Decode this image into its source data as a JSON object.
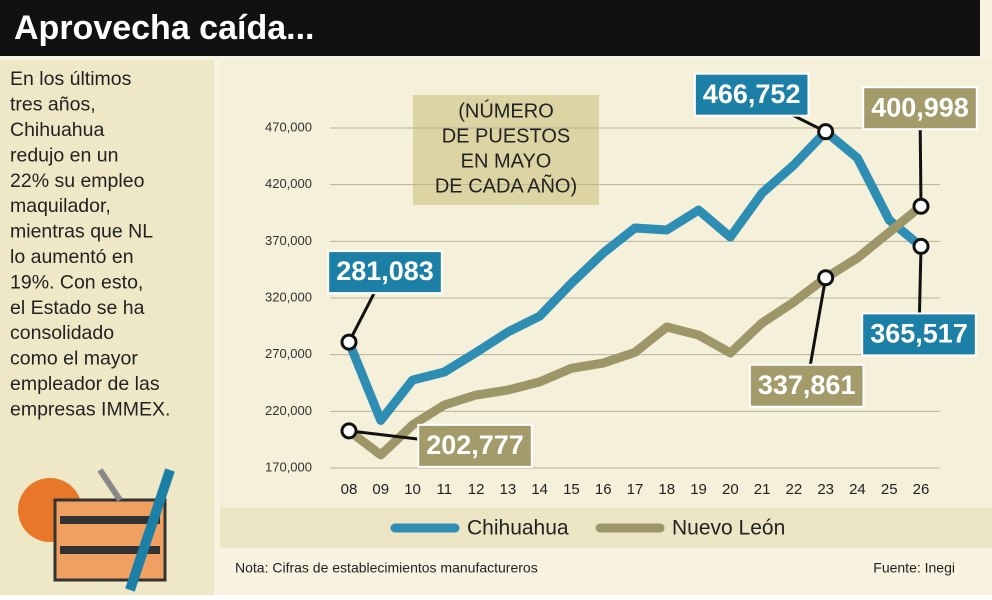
{
  "title": "Aprovecha caída...",
  "intro_lines": [
    "En los últimos",
    "tres años,",
    "Chihuahua",
    "redujo en un",
    "22% su empleo",
    "maquilador,",
    "mientras que NL",
    "lo aumentó en",
    "19%. Con esto,",
    "el Estado se ha",
    "consolidado",
    "como el mayor",
    "empleador de las",
    "empresas IMMEX."
  ],
  "chart_data": {
    "type": "line",
    "subtitle_lines": [
      "(NÚMERO",
      "DE PUESTOS",
      "EN MAYO",
      "DE CADA AÑO)"
    ],
    "categories": [
      "08",
      "09",
      "10",
      "11",
      "12",
      "13",
      "14",
      "15",
      "16",
      "17",
      "18",
      "19",
      "20",
      "21",
      "22",
      "23",
      "24",
      "25",
      "26"
    ],
    "series": [
      {
        "name": "Chihuahua",
        "color": "#2e8db2",
        "label_color": "#1b7fa6",
        "values": [
          281083,
          212000,
          247600,
          254700,
          272000,
          290000,
          304000,
          333000,
          359700,
          381800,
          380000,
          397600,
          373800,
          412600,
          437400,
          466752,
          443500,
          388800,
          365517
        ],
        "value_labels": [
          "281,083",
          null,
          null,
          null,
          null,
          null,
          null,
          null,
          null,
          null,
          null,
          null,
          null,
          null,
          null,
          "466,752",
          null,
          null,
          "365,517"
        ]
      },
      {
        "name": "Nuevo León",
        "color": "#9d9668",
        "label_color": "#a39b69",
        "values": [
          202777,
          181500,
          208000,
          225600,
          234400,
          238800,
          246000,
          258000,
          262600,
          272000,
          294400,
          287300,
          271500,
          298000,
          316500,
          337861,
          355300,
          378000,
          400998
        ],
        "value_labels": [
          "202,777",
          null,
          null,
          null,
          null,
          null,
          null,
          null,
          null,
          null,
          null,
          null,
          null,
          null,
          null,
          "337,861",
          null,
          null,
          "400,998"
        ]
      }
    ],
    "ylim": [
      170000,
      470000
    ],
    "yticks": [
      {
        "value": 170000,
        "label": "170,000"
      },
      {
        "value": 220000,
        "label": "220,000"
      },
      {
        "value": 270000,
        "label": "270,000"
      },
      {
        "value": 320000,
        "label": "320,000"
      },
      {
        "value": 370000,
        "label": "370,000"
      },
      {
        "value": 420000,
        "label": "420,000"
      },
      {
        "value": 470000,
        "label": "470,000"
      }
    ],
    "grid": true
  },
  "footer": {
    "note": "Nota: Cifras de establecimientos manufactureros",
    "source": "Fuente: Inegi"
  }
}
